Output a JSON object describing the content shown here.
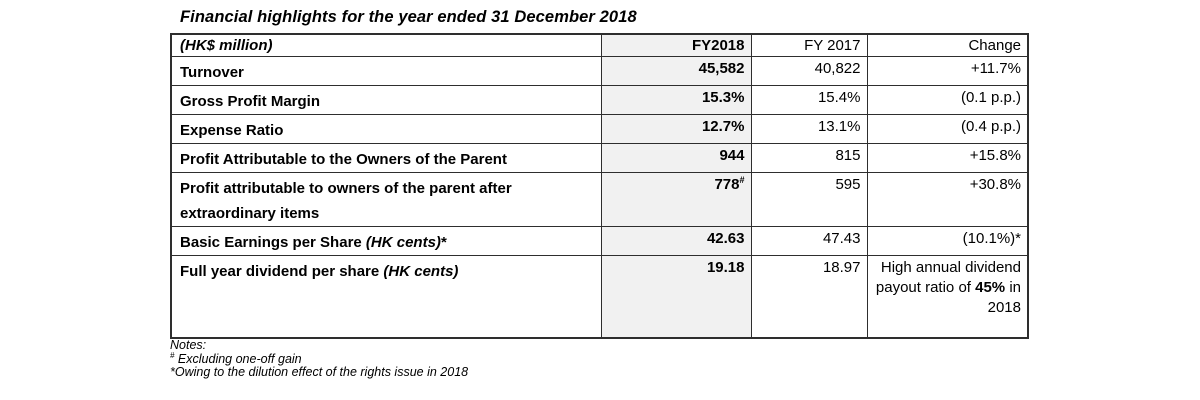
{
  "title": "Financial highlights for the year ended 31 December 2018",
  "table": {
    "columns": [
      {
        "label": "(HK$ million)"
      },
      {
        "label": "FY2018"
      },
      {
        "label": "FY 2017"
      },
      {
        "label": "Change"
      }
    ],
    "rows": [
      {
        "label": [
          {
            "t": "Turnover"
          }
        ],
        "fy2018": [
          {
            "t": "45,582"
          }
        ],
        "fy2017": [
          {
            "t": "40,822"
          }
        ],
        "change": [
          {
            "t": "+11.7%"
          }
        ]
      },
      {
        "label": [
          {
            "t": "Gross Profit Margin"
          }
        ],
        "fy2018": [
          {
            "t": "15.3%"
          }
        ],
        "fy2017": [
          {
            "t": "15.4%"
          }
        ],
        "change": [
          {
            "t": "(0.1 p.p.)"
          }
        ]
      },
      {
        "label": [
          {
            "t": "Expense Ratio"
          }
        ],
        "fy2018": [
          {
            "t": "12.7%"
          }
        ],
        "fy2017": [
          {
            "t": "13.1%"
          }
        ],
        "change": [
          {
            "t": "(0.4 p.p.)"
          }
        ]
      },
      {
        "label": [
          {
            "t": "Profit Attributable to the Owners of the Parent"
          }
        ],
        "fy2018": [
          {
            "t": "944"
          }
        ],
        "fy2017": [
          {
            "t": "815"
          }
        ],
        "change": [
          {
            "t": "+15.8%"
          }
        ]
      },
      {
        "label": [
          {
            "t": "Profit attributable to owners of the parent after extraordinary items"
          }
        ],
        "fy2018": [
          {
            "t": "778"
          },
          {
            "t": "#",
            "style": "sup"
          }
        ],
        "fy2017": [
          {
            "t": "595"
          }
        ],
        "change": [
          {
            "t": "+30.8%"
          }
        ]
      },
      {
        "label": [
          {
            "t": "Basic Earnings per Share "
          },
          {
            "t": "(HK cents)",
            "style": "italic"
          },
          {
            "t": "*"
          }
        ],
        "fy2018": [
          {
            "t": "42.63"
          }
        ],
        "fy2017": [
          {
            "t": "47.43"
          }
        ],
        "change": [
          {
            "t": "(10.1%)*"
          }
        ]
      },
      {
        "label": [
          {
            "t": "Full year dividend per share "
          },
          {
            "t": "(HK cents)",
            "style": "italic"
          }
        ],
        "fy2018": [
          {
            "t": "19.18"
          }
        ],
        "fy2017": [
          {
            "t": "18.97"
          }
        ],
        "change": [
          {
            "t": "High annual dividend payout ratio of "
          },
          {
            "t": "45%",
            "style": "bold"
          },
          {
            "t": " in 2018"
          }
        ]
      }
    ]
  },
  "notes": {
    "heading": "Notes:",
    "items": [
      [
        {
          "t": "#",
          "style": "sup"
        },
        {
          "t": " Excluding one-off gain"
        }
      ],
      [
        {
          "t": "*Owing to the dilution effect of the rights issue in 2018"
        }
      ]
    ]
  }
}
